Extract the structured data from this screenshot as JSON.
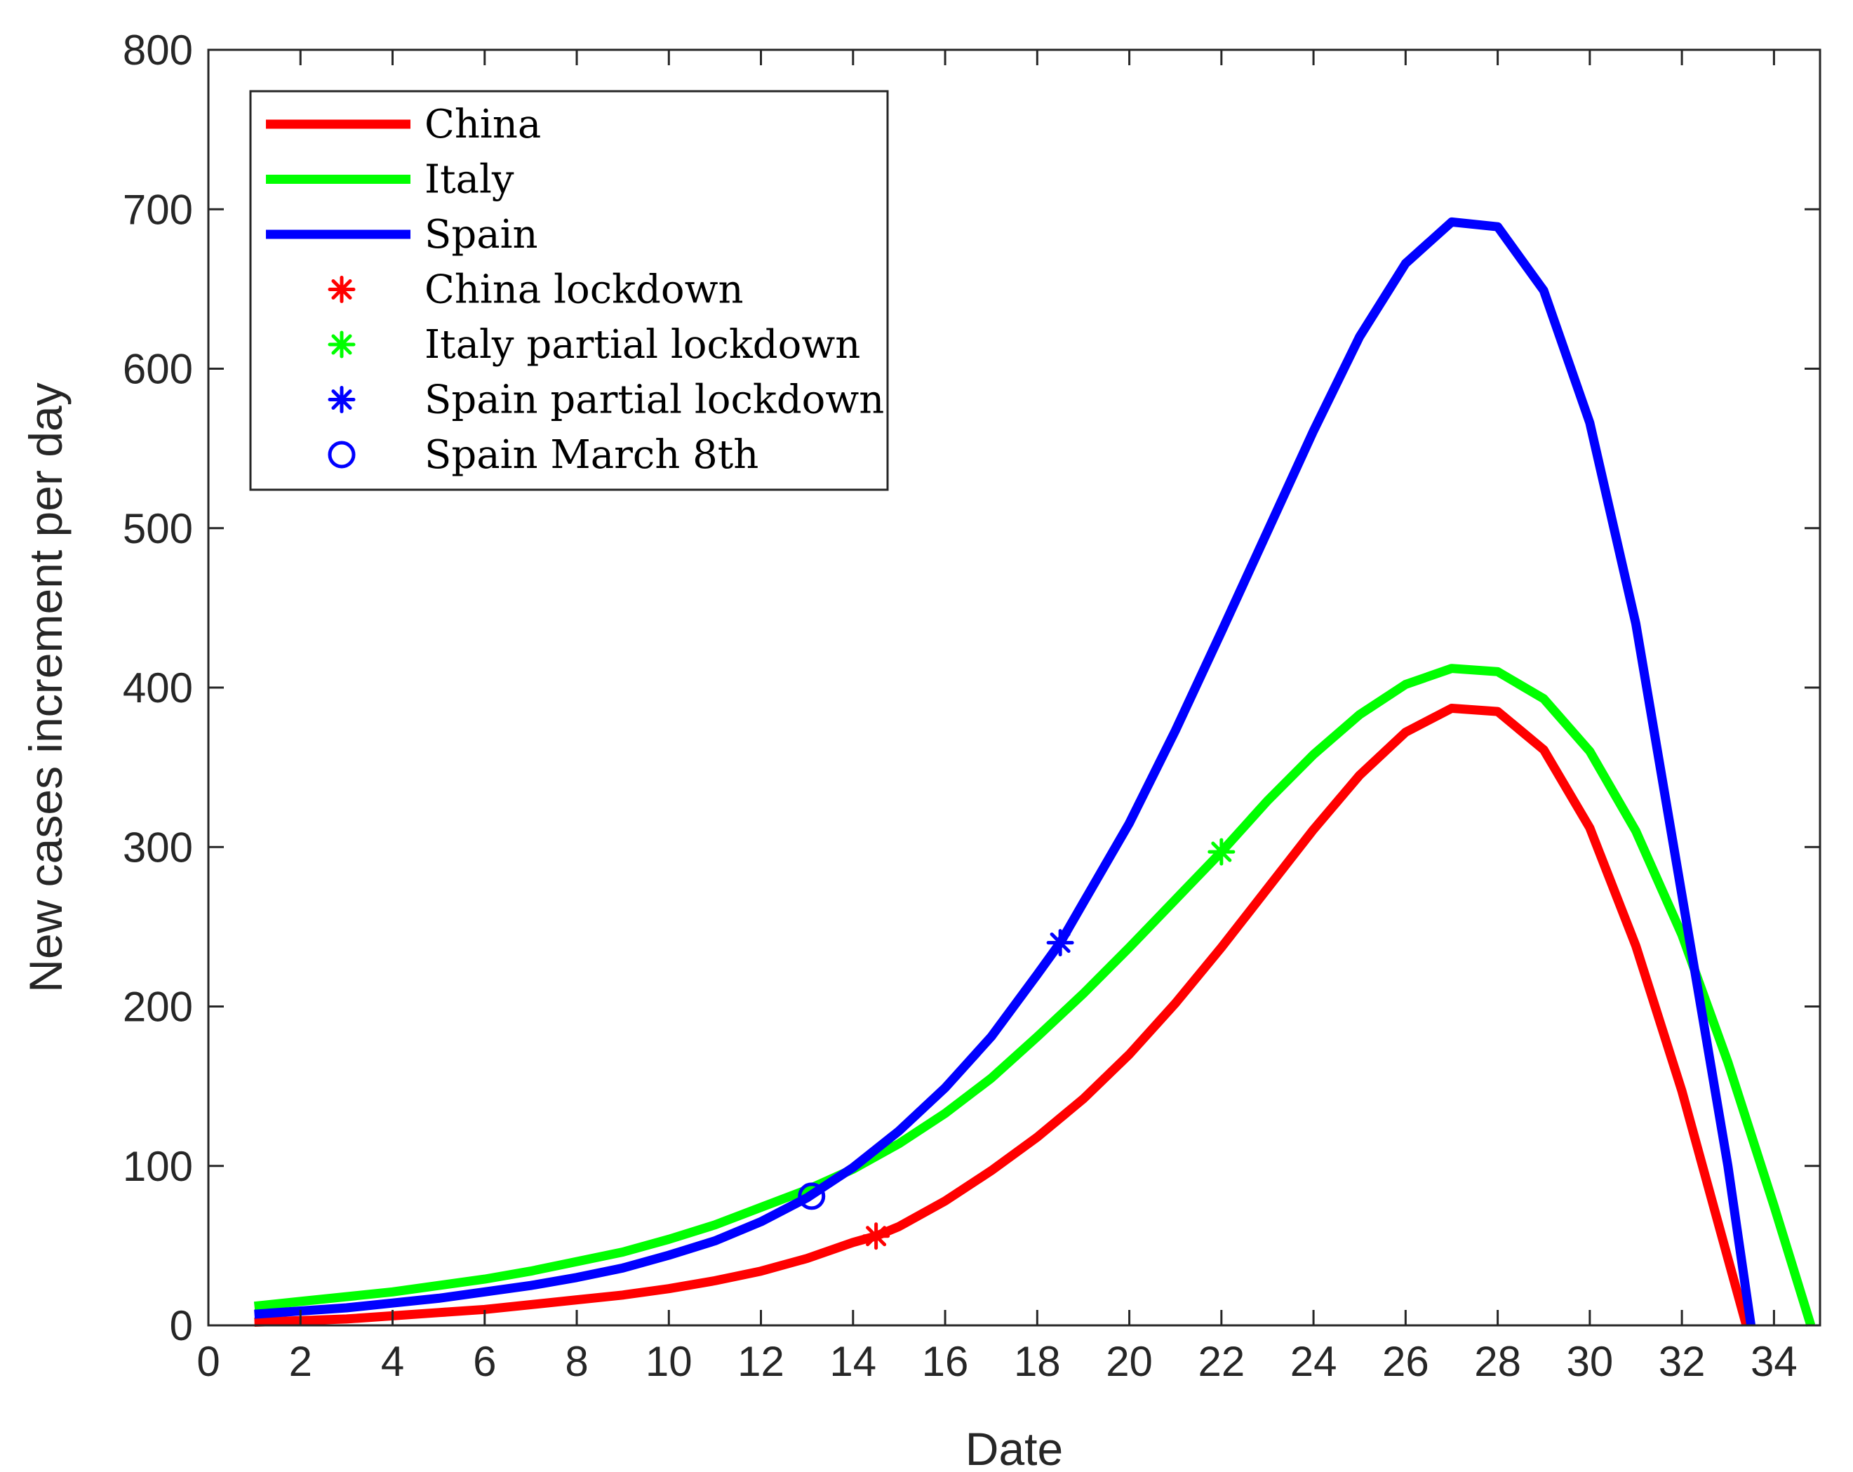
{
  "chart_data": {
    "type": "line",
    "title": "",
    "xlabel": "Date",
    "ylabel": "New cases increment per day",
    "xlim": [
      0,
      35
    ],
    "ylim": [
      0,
      800
    ],
    "xticks": [
      0,
      2,
      4,
      6,
      8,
      10,
      12,
      14,
      16,
      18,
      20,
      22,
      24,
      26,
      28,
      30,
      32,
      34
    ],
    "yticks": [
      0,
      100,
      200,
      300,
      400,
      500,
      600,
      700,
      800
    ],
    "grid": false,
    "legend_position": "top-left",
    "series": [
      {
        "name": "China",
        "color": "#ff0000",
        "x": [
          1,
          2,
          3,
          4,
          5,
          6,
          7,
          8,
          9,
          10,
          11,
          12,
          13,
          14,
          14.5,
          15,
          16,
          17,
          18,
          19,
          20,
          21,
          22,
          23,
          24,
          25,
          26,
          27,
          28,
          29,
          30,
          31,
          32,
          33,
          33.4
        ],
        "y": [
          2,
          3,
          4,
          6,
          8,
          10,
          13,
          16,
          19,
          23,
          28,
          34,
          42,
          52,
          56,
          62,
          78,
          97,
          118,
          142,
          170,
          202,
          237,
          274,
          311,
          345,
          372,
          387,
          385,
          361,
          312,
          238,
          147,
          42,
          0
        ]
      },
      {
        "name": "Italy",
        "color": "#00ff00",
        "x": [
          1,
          2,
          3,
          4,
          5,
          6,
          7,
          8,
          9,
          10,
          11,
          12,
          13,
          14,
          15,
          16,
          17,
          18,
          19,
          20,
          21,
          22,
          23,
          24,
          25,
          26,
          27,
          28,
          29,
          30,
          31,
          32,
          33,
          34,
          34.8
        ],
        "y": [
          12,
          15,
          18,
          21,
          25,
          29,
          34,
          40,
          46,
          54,
          63,
          74,
          85,
          98,
          114,
          133,
          155,
          181,
          208,
          237,
          267,
          297,
          329,
          358,
          383,
          402,
          412,
          410,
          393,
          360,
          310,
          245,
          165,
          75,
          0
        ]
      },
      {
        "name": "Spain",
        "color": "#0000ff",
        "x": [
          1,
          2,
          3,
          4,
          5,
          6,
          7,
          8,
          9,
          10,
          11,
          12,
          13,
          14,
          15,
          16,
          17,
          18,
          18.5,
          19,
          20,
          21,
          22,
          23,
          24,
          25,
          26,
          27,
          28,
          29,
          30,
          31,
          32,
          33,
          33.5
        ],
        "y": [
          7,
          9,
          11,
          14,
          17,
          21,
          25,
          30,
          36,
          44,
          53,
          65,
          80,
          99,
          122,
          149,
          181,
          220,
          240,
          265,
          315,
          373,
          435,
          498,
          561,
          620,
          666,
          692,
          689,
          649,
          566,
          440,
          270,
          100,
          0
        ]
      }
    ],
    "markers": [
      {
        "name": "China lockdown",
        "symbol": "asterisk",
        "color": "#ff0000",
        "x": 14.5,
        "y": 56
      },
      {
        "name": "Italy partial lockdown",
        "symbol": "asterisk",
        "color": "#00ff00",
        "x": 22,
        "y": 297
      },
      {
        "name": "Spain partial lockdown",
        "symbol": "asterisk",
        "color": "#0000ff",
        "x": 18.5,
        "y": 240
      },
      {
        "name": "Spain March 8th",
        "symbol": "circle",
        "color": "#0000ff",
        "x": 13.1,
        "y": 81
      }
    ],
    "legend": [
      {
        "label": "China",
        "kind": "line",
        "color": "#ff0000"
      },
      {
        "label": "Italy",
        "kind": "line",
        "color": "#00ff00"
      },
      {
        "label": "Spain",
        "kind": "line",
        "color": "#0000ff"
      },
      {
        "label": "China lockdown",
        "kind": "asterisk",
        "color": "#ff0000"
      },
      {
        "label": "Italy partial lockdown",
        "kind": "asterisk",
        "color": "#00ff00"
      },
      {
        "label": "Spain partial lockdown",
        "kind": "asterisk",
        "color": "#0000ff"
      },
      {
        "label": "Spain March 8th",
        "kind": "circle",
        "color": "#0000ff"
      }
    ]
  }
}
